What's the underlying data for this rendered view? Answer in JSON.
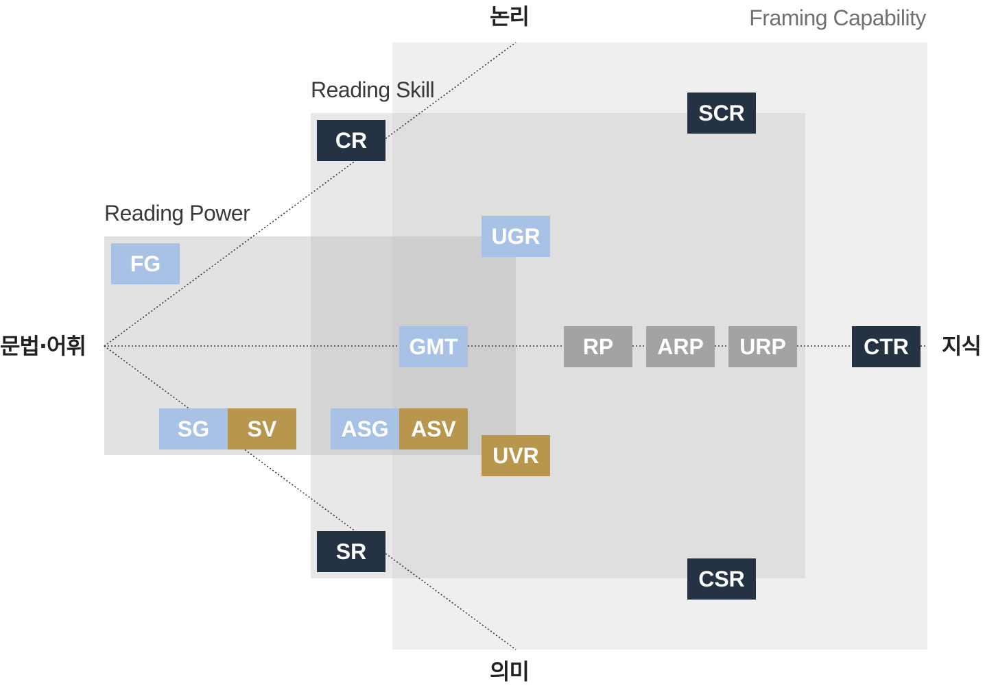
{
  "regions": {
    "framing": "Framing Capability",
    "skill": "Reading Skill",
    "power": "Reading Power"
  },
  "axes": {
    "top": "논리",
    "bottom": "의미",
    "left": "문법·어휘",
    "right": "지식"
  },
  "boxes": {
    "scr": "SCR",
    "cr": "CR",
    "ugr": "UGR",
    "fg": "FG",
    "gmt": "GMT",
    "rp": "RP",
    "arp": "ARP",
    "urp": "URP",
    "ctr": "CTR",
    "sg": "SG",
    "sv": "SV",
    "asg": "ASG",
    "asv": "ASV",
    "uvr": "UVR",
    "sr": "SR",
    "csr": "CSR"
  },
  "colors": {
    "dark": "#253244",
    "blue": "#a8c2e5",
    "gold": "#b8964d",
    "gray": "#a2a3a5"
  }
}
